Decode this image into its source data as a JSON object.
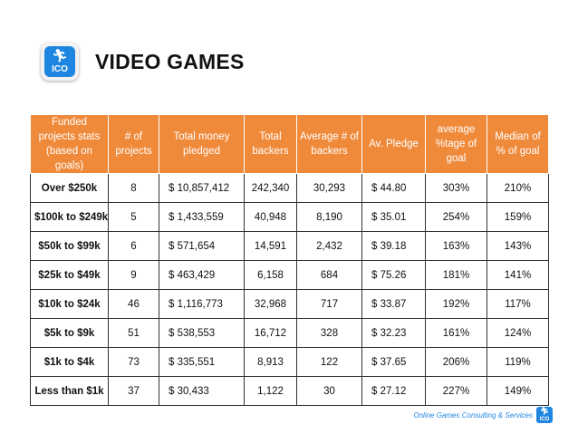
{
  "header": {
    "title": "VIDEO GAMES",
    "logo_text": "ICO",
    "logo_icon": "running-person-icon"
  },
  "table": {
    "columns": [
      "Funded projects stats (based on goals)",
      "# of projects",
      "Total money pledged",
      "Total backers",
      "Average # of backers",
      "Av. Pledge",
      "average %tage of goal",
      "Median of % of goal"
    ],
    "rows": [
      [
        "Over $250k",
        "8",
        "$  10,857,412",
        "242,340",
        "30,293",
        "$  44.80",
        "303%",
        "210%"
      ],
      [
        "$100k to $249k",
        "5",
        "$   1,433,559",
        "40,948",
        "8,190",
        "$  35.01",
        "254%",
        "159%"
      ],
      [
        "$50k to $99k",
        "6",
        "$     571,654",
        "14,591",
        "2,432",
        "$  39.18",
        "163%",
        "143%"
      ],
      [
        "$25k to $49k",
        "9",
        "$   463,429",
        "6,158",
        "684",
        "$  75.26",
        "181%",
        "141%"
      ],
      [
        "$10k to $24k",
        "46",
        "$  1,116,773",
        "32,968",
        "717",
        "$  33.87",
        "192%",
        "117%"
      ],
      [
        "$5k to $9k",
        "51",
        "$  538,553",
        "16,712",
        "328",
        "$  32.23",
        "161%",
        "124%"
      ],
      [
        "$1k to $4k",
        "73",
        "$   335,551",
        "8,913",
        "122",
        "$  37.65",
        "206%",
        "119%"
      ],
      [
        "Less than $1k",
        "37",
        "$     30,433",
        "1,122",
        "30",
        "$  27.12",
        "227%",
        "149%"
      ]
    ]
  },
  "footer": {
    "text": "Online Games Consulting & Services",
    "logo_text": "ICO"
  },
  "colors": {
    "header_bg": "#f08a3b",
    "accent_blue": "#1e86e0"
  }
}
